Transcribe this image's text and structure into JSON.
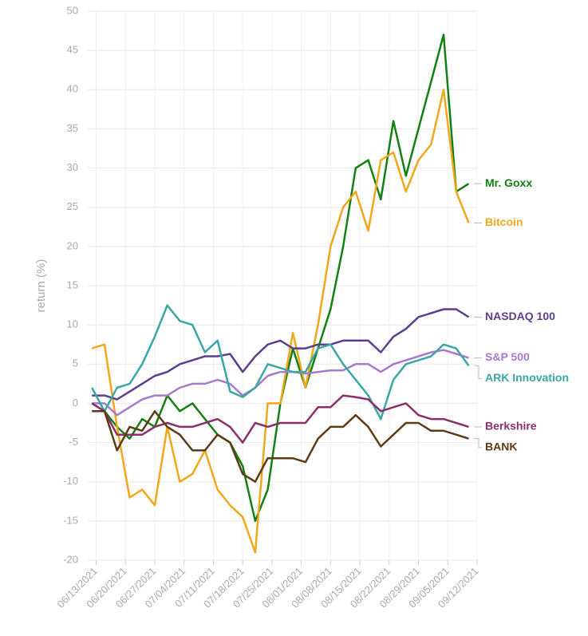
{
  "chart_data": {
    "type": "line",
    "y_label": "return (%)",
    "x": [
      "06/12/2021",
      "06/15/2021",
      "06/18/2021",
      "06/21/2021",
      "06/24/2021",
      "06/27/2021",
      "06/30/2021",
      "07/03/2021",
      "07/06/2021",
      "07/09/2021",
      "07/12/2021",
      "07/15/2021",
      "07/18/2021",
      "07/21/2021",
      "07/24/2021",
      "07/27/2021",
      "07/30/2021",
      "08/02/2021",
      "08/05/2021",
      "08/08/2021",
      "08/11/2021",
      "08/14/2021",
      "08/17/2021",
      "08/20/2021",
      "08/23/2021",
      "08/26/2021",
      "08/29/2021",
      "09/01/2021",
      "09/04/2021",
      "09/07/2021",
      "09/10/2021"
    ],
    "xlim": [
      "06/11/2021",
      "09/12/2021"
    ],
    "xticks": [
      "06/13/2021",
      "06/20/2021",
      "06/27/2021",
      "07/04/2021",
      "07/11/2021",
      "07/18/2021",
      "07/25/2021",
      "08/01/2021",
      "08/08/2021",
      "08/15/2021",
      "08/22/2021",
      "08/29/2021",
      "09/05/2021",
      "09/12/2021"
    ],
    "ylim": [
      -20,
      50
    ],
    "yticks": [
      -20,
      -15,
      -10,
      -5,
      0,
      5,
      10,
      15,
      20,
      25,
      30,
      35,
      40,
      45,
      50
    ],
    "grid": true,
    "series": [
      {
        "name": "Mr. Goxx",
        "color": "#138013",
        "values": [
          0,
          -1,
          -3,
          -4.5,
          -2,
          -3,
          1,
          -1,
          0,
          -2,
          -4,
          -5,
          -8,
          -15,
          -11,
          0,
          7,
          2,
          7,
          12,
          20,
          30,
          31,
          26,
          36,
          29,
          35,
          41,
          47,
          27,
          28
        ]
      },
      {
        "name": "Bitcoin",
        "color": "#f2a71b",
        "values": [
          7,
          7.5,
          -3,
          -12,
          -11,
          -13,
          -3,
          -10,
          -9,
          -6,
          -11,
          -13,
          -14.5,
          -19,
          0,
          0,
          9,
          2,
          10,
          20,
          25,
          27,
          22,
          31,
          32,
          27,
          31,
          33,
          40,
          27,
          23
        ]
      },
      {
        "name": "NASDAQ 100",
        "color": "#5b3f8c",
        "values": [
          1,
          1,
          0.5,
          1.5,
          2.5,
          3.5,
          4,
          5,
          5.5,
          6,
          6,
          6.3,
          4,
          6,
          7.5,
          8,
          7,
          7,
          7.5,
          7.5,
          8,
          8,
          8,
          6.5,
          8.5,
          9.5,
          11,
          11.5,
          12,
          12,
          11
        ]
      },
      {
        "name": "S&P 500",
        "color": "#a77bc9",
        "values": [
          0,
          0,
          -1.5,
          -0.5,
          0.5,
          1,
          1,
          2,
          2.5,
          2.5,
          3,
          2.5,
          1,
          2,
          3.5,
          4,
          4,
          3.8,
          4,
          4.2,
          4.2,
          5,
          5,
          4,
          5,
          5.5,
          6,
          6.5,
          6.8,
          6.3,
          5.8
        ]
      },
      {
        "name": "ARK Innovation",
        "color": "#3aa6a6",
        "values": [
          2,
          -1,
          2,
          2.5,
          5,
          8.5,
          12.5,
          10.5,
          10,
          6.5,
          8,
          1.5,
          0.8,
          2,
          5,
          4.5,
          4,
          4,
          7,
          7.5,
          5,
          3,
          1,
          -2,
          3,
          5,
          5.5,
          6,
          7.5,
          7,
          4.8
        ]
      },
      {
        "name": "Berkshire",
        "color": "#8a2f6a",
        "values": [
          0,
          -1,
          -4,
          -4,
          -4,
          -3,
          -2.5,
          -3,
          -3,
          -2.5,
          -2,
          -3,
          -5,
          -2.5,
          -3,
          -2.5,
          -2.5,
          -2.5,
          -0.5,
          -0.5,
          1,
          0.8,
          0.5,
          -1,
          -0.5,
          0,
          -1.5,
          -2,
          -2,
          -2.5,
          -3
        ]
      },
      {
        "name": "BANK",
        "color": "#5c3b17",
        "values": [
          -1,
          -1,
          -6,
          -3,
          -3.5,
          -1,
          -3,
          -4,
          -6,
          -6,
          -4,
          -5,
          -9,
          -10,
          -7,
          -7,
          -7,
          -7.5,
          -4.5,
          -3,
          -3,
          -1.5,
          -3,
          -5.5,
          -4,
          -2.5,
          -2.5,
          -3.5,
          -3.5,
          -4,
          -4.5
        ]
      }
    ]
  }
}
